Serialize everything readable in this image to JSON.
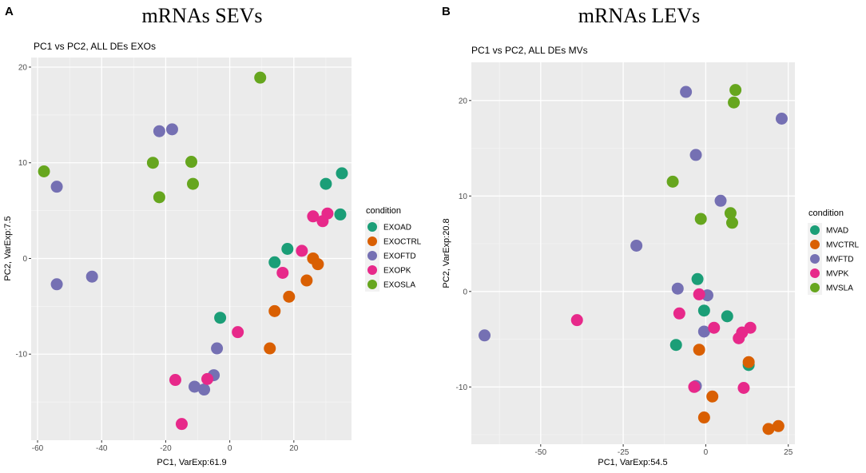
{
  "chart_data": [
    {
      "panel_letter": "A",
      "header": "mRNAs SEVs",
      "type": "scatter",
      "title": "PC1 vs PC2, ALL DEs EXOs",
      "xlabel": "PC1, VarExp:61.9",
      "ylabel": "PC2, VarExp:7.5",
      "xlim": [
        -62,
        38
      ],
      "ylim": [
        -19,
        21
      ],
      "xticks": [
        -60,
        -40,
        -20,
        0,
        20
      ],
      "yticks": [
        -10,
        0,
        10,
        20
      ],
      "legend_title": "condition",
      "legend_position": "right",
      "series": [
        {
          "name": "EXOAD",
          "color": "#1b9e77",
          "points": [
            [
              -3,
              -6.2
            ],
            [
              14,
              -0.4
            ],
            [
              18,
              1
            ],
            [
              30,
              7.8
            ],
            [
              35,
              8.9
            ],
            [
              34.5,
              4.6
            ]
          ]
        },
        {
          "name": "EXOCTRL",
          "color": "#d95f02",
          "points": [
            [
              12.5,
              -9.4
            ],
            [
              14,
              -5.5
            ],
            [
              18.5,
              -4
            ],
            [
              24,
              -2.3
            ],
            [
              26,
              0
            ],
            [
              27.5,
              -0.6
            ]
          ]
        },
        {
          "name": "EXOFTD",
          "color": "#7570b3",
          "points": [
            [
              -22,
              13.3
            ],
            [
              -18,
              13.5
            ],
            [
              -54,
              7.5
            ],
            [
              -54,
              -2.7
            ],
            [
              -43,
              -1.9
            ],
            [
              -4,
              -9.4
            ],
            [
              -5,
              -12.2
            ],
            [
              -11,
              -13.4
            ],
            [
              -8,
              -13.7
            ]
          ]
        },
        {
          "name": "EXOPK",
          "color": "#e7298a",
          "points": [
            [
              2.5,
              -7.7
            ],
            [
              16.5,
              -1.5
            ],
            [
              22.5,
              0.8
            ],
            [
              26,
              4.4
            ],
            [
              29,
              3.9
            ],
            [
              30.5,
              4.7
            ],
            [
              -7,
              -12.6
            ],
            [
              -17,
              -12.7
            ],
            [
              -15,
              -17.3
            ]
          ]
        },
        {
          "name": "EXOSLA",
          "color": "#66a61e",
          "points": [
            [
              -58,
              9.1
            ],
            [
              -24,
              10
            ],
            [
              -22,
              6.4
            ],
            [
              -12,
              10.1
            ],
            [
              -11.5,
              7.8
            ],
            [
              9.5,
              18.9
            ]
          ]
        }
      ]
    },
    {
      "panel_letter": "B",
      "header": "mRNAs LEVs",
      "type": "scatter",
      "title": "PC1 vs PC2, ALL DEs MVs",
      "xlabel": "PC1, VarExp:54.5",
      "ylabel": "PC2, VarExp:20.8",
      "xlim": [
        -71,
        27
      ],
      "ylim": [
        -16,
        24
      ],
      "xticks": [
        -50,
        -25,
        0,
        25
      ],
      "yticks": [
        -10,
        0,
        10,
        20
      ],
      "legend_title": "condition",
      "legend_position": "right",
      "series": [
        {
          "name": "MVAD",
          "color": "#1b9e77",
          "points": [
            [
              -2.5,
              1.3
            ],
            [
              -0.5,
              -2
            ],
            [
              6.5,
              -2.6
            ],
            [
              -9,
              -5.6
            ],
            [
              13,
              -7.7
            ]
          ]
        },
        {
          "name": "MVCTRL",
          "color": "#d95f02",
          "points": [
            [
              -2,
              -6.1
            ],
            [
              -0.5,
              -13.2
            ],
            [
              2,
              -11
            ],
            [
              13,
              -7.4
            ],
            [
              19,
              -14.4
            ],
            [
              22,
              -14.1
            ]
          ]
        },
        {
          "name": "MVFTD",
          "color": "#7570b3",
          "points": [
            [
              -6,
              20.9
            ],
            [
              23,
              18.1
            ],
            [
              -3,
              14.3
            ],
            [
              4.5,
              9.5
            ],
            [
              -21,
              4.8
            ],
            [
              -8.5,
              0.3
            ],
            [
              0.5,
              -0.4
            ],
            [
              -0.5,
              -4.2
            ],
            [
              -3,
              -9.9
            ],
            [
              -67,
              -4.6
            ]
          ]
        },
        {
          "name": "MVPK",
          "color": "#e7298a",
          "points": [
            [
              -2,
              -0.3
            ],
            [
              -8,
              -2.3
            ],
            [
              2.5,
              -3.8
            ],
            [
              11,
              -4.3
            ],
            [
              13.5,
              -3.8
            ],
            [
              10,
              -4.9
            ],
            [
              -3.5,
              -10
            ],
            [
              11.5,
              -10.1
            ],
            [
              -39,
              -3
            ]
          ]
        },
        {
          "name": "MVSLA",
          "color": "#66a61e",
          "points": [
            [
              9,
              21.1
            ],
            [
              8.5,
              19.8
            ],
            [
              -10,
              11.5
            ],
            [
              7.5,
              8.2
            ],
            [
              8,
              7.2
            ],
            [
              -1.5,
              7.6
            ]
          ]
        }
      ]
    }
  ]
}
